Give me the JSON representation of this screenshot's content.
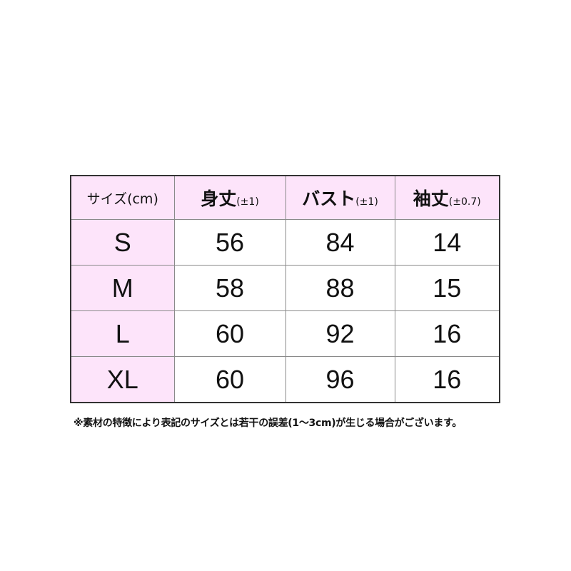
{
  "table": {
    "headers": [
      {
        "main": "サイズ(cm)",
        "tolerance": ""
      },
      {
        "main": "身丈",
        "tolerance": "(±1)"
      },
      {
        "main": "バスト",
        "tolerance": "(±1)"
      },
      {
        "main": "袖丈",
        "tolerance": "(±0.7)"
      }
    ],
    "rows": [
      [
        "S",
        "56",
        "84",
        "14"
      ],
      [
        "M",
        "58",
        "88",
        "15"
      ],
      [
        "L",
        "60",
        "92",
        "16"
      ],
      [
        "XL",
        "60",
        "96",
        "16"
      ]
    ]
  },
  "note": "※素材の特徴により表記のサイズとは若干の誤差(1～3cm)が生じる場合がございます。",
  "colors": {
    "header_bg": "#fde4fa",
    "border": "#333333"
  }
}
